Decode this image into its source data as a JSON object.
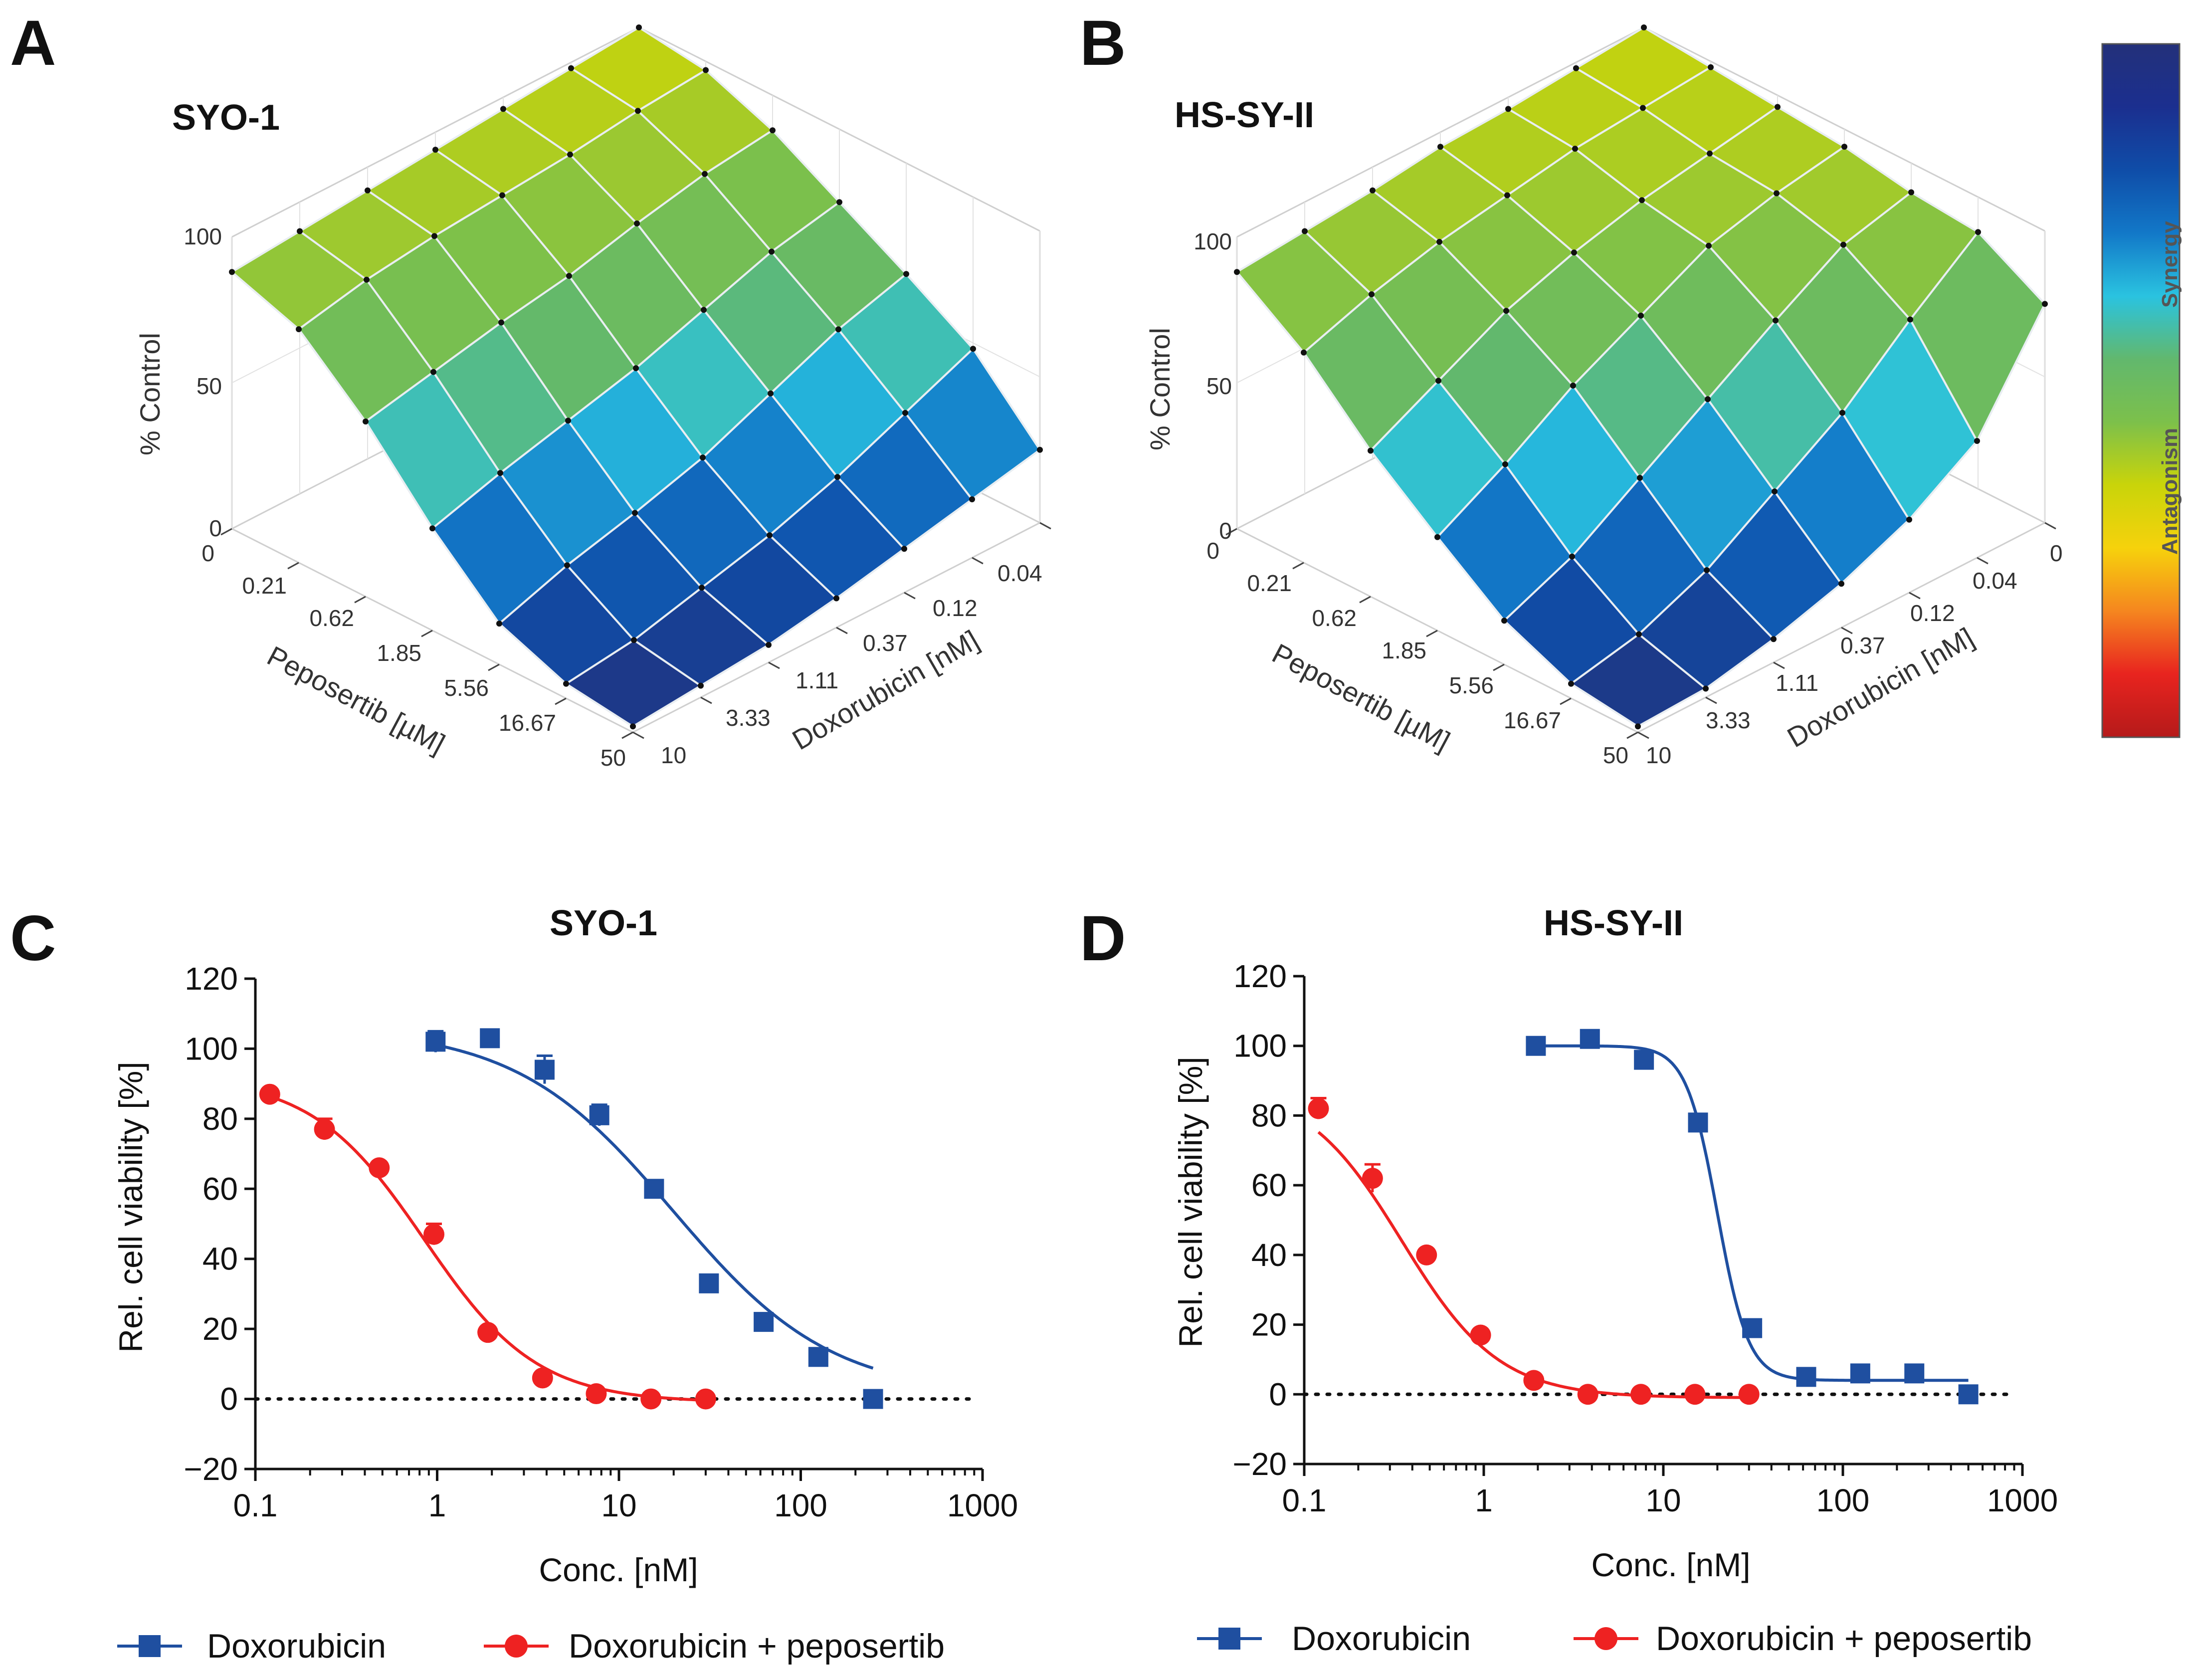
{
  "panels": {
    "A": {
      "letter": "A",
      "title": "SYO-1"
    },
    "B": {
      "letter": "B",
      "title": "HS-SY-II"
    },
    "C": {
      "letter": "C",
      "title": "SYO-1"
    },
    "D": {
      "letter": "D",
      "title": "HS-SY-II"
    }
  },
  "surface_axes": {
    "z_label": "% Control",
    "z_ticks": [
      "0",
      "50",
      "100"
    ],
    "peposertib_label": "Peposertib [µM]",
    "peposertib_ticks": [
      "0",
      "0.21",
      "0.62",
      "1.85",
      "5.56",
      "16.67",
      "50"
    ],
    "doxorubicin_label": "Doxorubicin [nM]",
    "doxorubicin_ticks": [
      "10",
      "3.33",
      "1.11",
      "0.37",
      "0.12",
      "0.04",
      "0"
    ]
  },
  "colorbar": {
    "synergy_label": "Synergy",
    "antagonism_label": "Antagonism",
    "colors": [
      "#b51a1a",
      "#e8241f",
      "#f5861f",
      "#f6d20c",
      "#c9d40a",
      "#7cc04b",
      "#62b86d",
      "#2ac3e0",
      "#1278c8",
      "#0f4da8",
      "#1b2f8f",
      "#23307a"
    ]
  },
  "curve_axes": {
    "xlabel": "Conc. [nM]",
    "ylabel": "Rel. cell viability [%]",
    "x_ticks": [
      "0.1",
      "1",
      "10",
      "100",
      "1000"
    ],
    "y_ticks": [
      "120",
      "100",
      "80",
      "60",
      "40",
      "20",
      "0",
      "−20"
    ]
  },
  "legend": {
    "doxorubicin": "Doxorubicin",
    "combination": "Doxorubicin + peposertib"
  },
  "series_colors": {
    "doxorubicin": "#1f4fa0",
    "combination": "#ee2222"
  },
  "chart_data": [
    {
      "type": "heatmap",
      "panel": "A",
      "title": "SYO-1",
      "zlabel": "% Control",
      "zlim": [
        0,
        100
      ],
      "x_label": "Peposertib [µM]",
      "x": [
        0,
        0.21,
        0.62,
        1.85,
        5.56,
        16.67,
        50
      ],
      "y_label": "Doxorubicin [nM]",
      "y": [
        0,
        0.04,
        0.12,
        0.37,
        1.11,
        3.33,
        10
      ],
      "z": [
        [
          100,
          97,
          88,
          75,
          62,
          48,
          25
        ],
        [
          98,
          95,
          85,
          70,
          55,
          38,
          20
        ],
        [
          96,
          92,
          80,
          62,
          45,
          28,
          15
        ],
        [
          94,
          90,
          74,
          54,
          35,
          20,
          10
        ],
        [
          92,
          88,
          70,
          48,
          28,
          14,
          6
        ],
        [
          90,
          85,
          65,
          42,
          22,
          8,
          4
        ],
        [
          88,
          80,
          60,
          35,
          14,
          5,
          2
        ]
      ]
    },
    {
      "type": "heatmap",
      "panel": "B",
      "title": "HS-SY-II",
      "zlabel": "% Control",
      "zlim": [
        0,
        100
      ],
      "x_label": "Peposertib [µM]",
      "x": [
        0,
        0.21,
        0.62,
        1.85,
        5.56,
        16.67,
        50
      ],
      "y_label": "Doxorubicin [nM]",
      "y": [
        0,
        0.04,
        0.12,
        0.37,
        1.11,
        3.33,
        10
      ],
      "z": [
        [
          100,
          98,
          96,
          94,
          90,
          88,
          75
        ],
        [
          98,
          96,
          92,
          90,
          84,
          70,
          40
        ],
        [
          96,
          94,
          88,
          84,
          70,
          50,
          25
        ],
        [
          95,
          90,
          82,
          72,
          55,
          35,
          15
        ],
        [
          92,
          86,
          74,
          60,
          40,
          20,
          8
        ],
        [
          90,
          80,
          62,
          45,
          25,
          10,
          3
        ],
        [
          88,
          72,
          50,
          32,
          15,
          5,
          2
        ]
      ]
    },
    {
      "type": "line",
      "panel": "C",
      "title": "SYO-1",
      "xlabel": "Conc. [nM]",
      "ylabel": "Rel. cell viability [%]",
      "xscale": "log",
      "xlim": [
        0.1,
        1000
      ],
      "ylim": [
        -20,
        120
      ],
      "series": [
        {
          "name": "Doxorubicin",
          "marker": "square",
          "x": [
            0.98,
            1.95,
            3.9,
            7.8,
            15.6,
            31.25,
            62.5,
            125,
            250
          ],
          "y": [
            102,
            103,
            94,
            81,
            60,
            33,
            22,
            12,
            0
          ],
          "err": [
            3,
            1,
            4,
            3,
            1,
            1,
            1,
            1,
            1
          ],
          "fit": {
            "top": 106,
            "bottom": 1,
            "ec50": 20,
            "hill": 1.0
          }
        },
        {
          "name": "Doxorubicin + peposertib",
          "marker": "circle",
          "x": [
            0.12,
            0.24,
            0.48,
            0.96,
            1.9,
            3.8,
            7.5,
            15,
            30
          ],
          "y": [
            87,
            77,
            66,
            47,
            19,
            6,
            1.5,
            0,
            0
          ],
          "err": [
            1,
            3,
            1,
            3,
            1,
            1,
            1,
            1,
            1
          ],
          "fit": {
            "top": 92,
            "bottom": -1,
            "ec50": 0.85,
            "hill": 1.4
          }
        }
      ]
    },
    {
      "type": "line",
      "panel": "D",
      "title": "HS-SY-II",
      "xlabel": "Conc. [nM]",
      "ylabel": "Rel. cell viability [%]",
      "xscale": "log",
      "xlim": [
        0.1,
        1000
      ],
      "ylim": [
        -20,
        120
      ],
      "series": [
        {
          "name": "Doxorubicin",
          "marker": "square",
          "x": [
            1.95,
            3.9,
            7.8,
            15.6,
            31.25,
            62.5,
            125,
            250,
            500
          ],
          "y": [
            100,
            102,
            96,
            78,
            19,
            5,
            6,
            6,
            0
          ],
          "err": [
            1,
            1,
            1,
            1,
            1,
            1,
            1,
            1,
            1
          ],
          "fit": {
            "top": 100,
            "bottom": 4,
            "ec50": 20,
            "hill": 5.0
          }
        },
        {
          "name": "Doxorubicin + peposertib",
          "marker": "circle",
          "x": [
            0.12,
            0.24,
            0.48,
            0.96,
            1.9,
            3.8,
            7.5,
            15,
            30
          ],
          "y": [
            82,
            62,
            40,
            17,
            4,
            0,
            0,
            0,
            0
          ],
          "err": [
            3,
            4,
            1,
            1,
            1,
            1,
            1,
            1,
            1
          ],
          "fit": {
            "top": 89,
            "bottom": -1,
            "ec50": 0.35,
            "hill": 1.6
          }
        }
      ]
    }
  ]
}
